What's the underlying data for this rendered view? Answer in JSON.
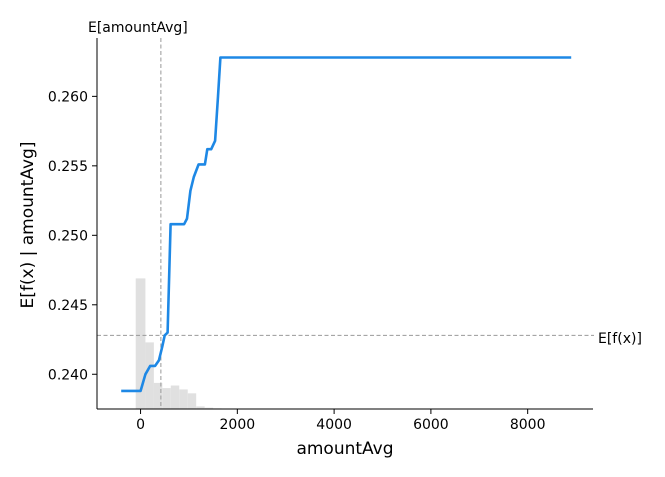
{
  "chart_data": {
    "type": "line",
    "title": "",
    "xlabel": "amountAvg",
    "ylabel": "E[f(x) | amountAvg]",
    "xlim": [
      -900,
      9350
    ],
    "ylim": [
      0.2375,
      0.2642
    ],
    "x_ticks": [
      0,
      2000,
      4000,
      6000,
      8000
    ],
    "x_tick_labels": [
      "0",
      "2000",
      "4000",
      "6000",
      "8000"
    ],
    "y_ticks": [
      0.24,
      0.245,
      0.25,
      0.255,
      0.26
    ],
    "y_tick_labels": [
      "0.240",
      "0.245",
      "0.250",
      "0.255",
      "0.260"
    ],
    "grid": false,
    "series": [
      {
        "color": "#1e88e5",
        "x": [
          -400,
          0,
          100,
          200,
          300,
          380,
          450,
          500,
          560,
          620,
          700,
          780,
          900,
          960,
          1030,
          1100,
          1200,
          1280,
          1330,
          1380,
          1460,
          1540,
          1600,
          1650,
          1700,
          1730,
          1800,
          3000,
          5000,
          7000,
          8900
        ],
        "y": [
          0.2388,
          0.2388,
          0.24,
          0.2406,
          0.2406,
          0.241,
          0.242,
          0.2428,
          0.243,
          0.2508,
          0.2508,
          0.2508,
          0.2508,
          0.2512,
          0.2532,
          0.2542,
          0.2551,
          0.2551,
          0.2551,
          0.2562,
          0.2562,
          0.2568,
          0.26,
          0.2628,
          0.2628,
          0.2628,
          0.2628,
          0.2628,
          0.2628,
          0.2628,
          0.2628
        ]
      }
    ],
    "histogram": {
      "color": "#e0e0e0",
      "bin_edges": [
        -100,
        100,
        275,
        450,
        625,
        800,
        975,
        1150,
        1325,
        1500,
        1675,
        1850,
        2025
      ],
      "counts": [
        100,
        51,
        20,
        16,
        18,
        15,
        12,
        2,
        1,
        0.5,
        0.3,
        0.2
      ]
    },
    "mean_x": {
      "value": 420,
      "label": "E[amountAvg]"
    },
    "mean_y": {
      "value": 0.2428,
      "label": "E[f(x)]"
    }
  }
}
